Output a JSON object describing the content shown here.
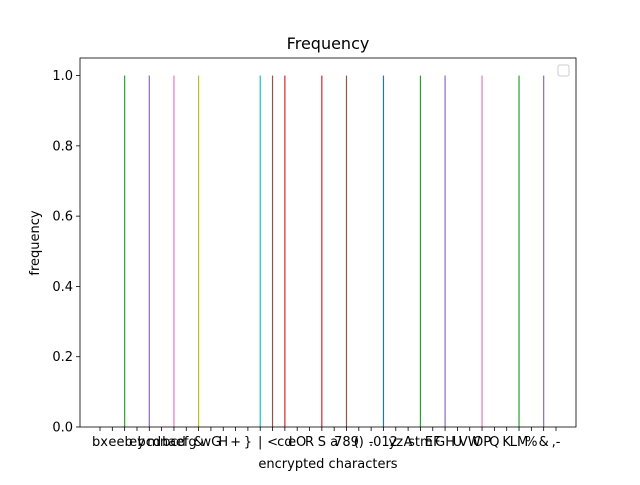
{
  "chart_data": {
    "type": "bar",
    "title": "Frequency",
    "xlabel": "encrypted characters",
    "ylabel": "frequency",
    "ylim": [
      0,
      1.05
    ],
    "yticks": [
      "0.0",
      "0.2",
      "0.4",
      "0.6",
      "0.8",
      "1.0"
    ],
    "legend": {
      "placement": "top-right",
      "entries": []
    },
    "grid": false,
    "series": [
      {
        "label": "bx",
        "value": 0,
        "color": "#1f77b4"
      },
      {
        "label": "e",
        "value": 0,
        "color": "#ff7f0e"
      },
      {
        "label": "eb",
        "value": 1,
        "color": "#2ca02c"
      },
      {
        "label": "ey",
        "value": 0,
        "color": "#d62728"
      },
      {
        "label": "bcd",
        "value": 1,
        "color": "#9467bd"
      },
      {
        "label": "mna",
        "value": 0,
        "color": "#8c564b"
      },
      {
        "label": "bcd",
        "value": 1,
        "color": "#e377c2"
      },
      {
        "label": "efg",
        "value": 0,
        "color": "#7f7f7f"
      },
      {
        "label": "&",
        "value": 1,
        "color": "#bcbd22"
      },
      {
        "label": "wG",
        "value": 0,
        "color": "#17becf"
      },
      {
        "label": "H",
        "value": 0,
        "color": "#1f77b4"
      },
      {
        "label": "+",
        "value": 0,
        "color": "#ff7f0e"
      },
      {
        "label": "}",
        "value": 0,
        "color": "#2ca02c"
      },
      {
        "label": "|",
        "value": 1,
        "color": "#17becf"
      },
      {
        "label": "<",
        "value": 1,
        "color": "#8c564b"
      },
      {
        "label": "cd",
        "value": 1,
        "color": "#d62728"
      },
      {
        "label": "eO",
        "value": 0,
        "color": "#e377c2"
      },
      {
        "label": "R",
        "value": 0,
        "color": "#7f7f7f"
      },
      {
        "label": "S",
        "value": 1,
        "color": "#d62728"
      },
      {
        "label": "a",
        "value": 0,
        "color": "#17becf"
      },
      {
        "label": "789",
        "value": 1,
        "color": "#8c564b"
      },
      {
        "label": "()",
        "value": 0,
        "color": "#ff7f0e"
      },
      {
        "label": "-",
        "value": 0,
        "color": "#2ca02c"
      },
      {
        "label": ".012",
        "value": 1,
        "color": "#1f77b4"
      },
      {
        "label": "yz",
        "value": 0,
        "color": "#9467bd"
      },
      {
        "label": "A",
        "value": 0,
        "color": "#8c564b"
      },
      {
        "label": "stm",
        "value": 1,
        "color": "#2ca02c"
      },
      {
        "label": "EF",
        "value": 0,
        "color": "#7f7f7f"
      },
      {
        "label": "GH",
        "value": 1,
        "color": "#9467bd"
      },
      {
        "label": "U",
        "value": 0,
        "color": "#17becf"
      },
      {
        "label": "VW",
        "value": 0,
        "color": "#1f77b4"
      },
      {
        "label": "OP",
        "value": 1,
        "color": "#e377c2"
      },
      {
        "label": "Q",
        "value": 0,
        "color": "#2ca02c"
      },
      {
        "label": "K",
        "value": 0,
        "color": "#d62728"
      },
      {
        "label": "LM",
        "value": 1,
        "color": "#2ca02c"
      },
      {
        "label": "%",
        "value": 0,
        "color": "#8c564b"
      },
      {
        "label": "&",
        "value": 1,
        "color": "#9467bd"
      },
      {
        "label": ",-",
        "value": 0,
        "color": "#7f7f7f"
      }
    ]
  }
}
